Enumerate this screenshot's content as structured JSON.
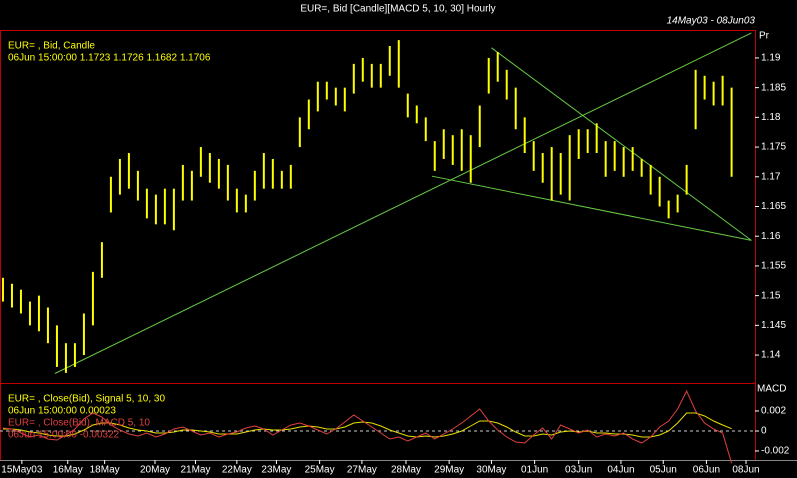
{
  "chart_data": [
    {
      "type": "candlestick",
      "title": "EUR=, Bid [Candle][MACD 5, 10, 30] Hourly",
      "subtitle": "14May03 - 08Jun03",
      "y_label": "Pr",
      "legend_lines": [
        "EUR= , Bid, Candle",
        "06Jun 15:00:00 1.1723 1.1726 1.1682 1.1706"
      ],
      "color": "#ffff00",
      "xlim": [
        -0.33,
        83.6
      ],
      "ylim": [
        1.1353,
        1.1947
      ],
      "yticks": [
        1.14,
        1.145,
        1.15,
        1.155,
        1.16,
        1.165,
        1.17,
        1.175,
        1.18,
        1.185,
        1.19
      ],
      "high": [
        1.153,
        1.152,
        1.151,
        1.149,
        1.15,
        1.148,
        1.145,
        1.142,
        1.142,
        1.147,
        1.154,
        1.159,
        1.17,
        1.173,
        1.174,
        1.171,
        1.168,
        1.167,
        1.168,
        1.168,
        1.172,
        1.171,
        1.175,
        1.174,
        1.173,
        1.172,
        1.168,
        1.167,
        1.171,
        1.174,
        1.173,
        1.171,
        1.172,
        1.18,
        1.183,
        1.186,
        1.186,
        1.185,
        1.185,
        1.189,
        1.19,
        1.189,
        1.189,
        1.192,
        1.193,
        1.184,
        1.182,
        1.18,
        1.176,
        1.178,
        1.177,
        1.178,
        1.177,
        1.182,
        1.19,
        1.191,
        1.188,
        1.185,
        1.18,
        1.176,
        1.174,
        1.175,
        1.174,
        1.177,
        1.178,
        1.178,
        1.179,
        1.176,
        1.176,
        1.175,
        1.175,
        1.173,
        1.172,
        1.17,
        1.166,
        1.167,
        1.172,
        1.188,
        1.187,
        1.186,
        1.187,
        1.185
      ],
      "low": [
        1.149,
        1.148,
        1.147,
        1.145,
        1.144,
        1.142,
        1.138,
        1.137,
        1.138,
        1.14,
        1.145,
        1.153,
        1.164,
        1.167,
        1.168,
        1.166,
        1.163,
        1.162,
        1.162,
        1.161,
        1.166,
        1.166,
        1.17,
        1.169,
        1.168,
        1.166,
        1.164,
        1.164,
        1.166,
        1.168,
        1.168,
        1.168,
        1.168,
        1.175,
        1.178,
        1.181,
        1.183,
        1.182,
        1.181,
        1.184,
        1.186,
        1.185,
        1.185,
        1.187,
        1.185,
        1.18,
        1.179,
        1.176,
        1.171,
        1.173,
        1.172,
        1.171,
        1.169,
        1.175,
        1.184,
        1.186,
        1.183,
        1.178,
        1.174,
        1.171,
        1.169,
        1.166,
        1.167,
        1.166,
        1.173,
        1.174,
        1.174,
        1.17,
        1.171,
        1.17,
        1.171,
        1.17,
        1.167,
        1.165,
        1.163,
        1.164,
        1.167,
        1.178,
        1.183,
        1.182,
        1.182,
        1.17
      ],
      "trendline_color": "#66cc44",
      "trendlines": [
        {
          "x": [
            5.78,
            83.2
          ],
          "y": [
            1.1369,
            1.1942
          ]
        },
        {
          "x": [
            54.3,
            83.2
          ],
          "y": [
            1.1917,
            1.1593
          ]
        },
        {
          "x": [
            47.7,
            83.2
          ],
          "y": [
            1.1701,
            1.1593
          ]
        }
      ]
    },
    {
      "type": "line",
      "y_label": "MACD",
      "xlim": [
        -0.33,
        83.6
      ],
      "ylim": [
        -0.0029,
        0.0048
      ],
      "yticks": [
        0.002,
        0,
        -0.002
      ],
      "zero_line": true,
      "xticks": [
        {
          "value": 2.1,
          "label": "15May03"
        },
        {
          "value": 7.2,
          "label": "16May"
        },
        {
          "value": 11.3,
          "label": "18May"
        },
        {
          "value": 16.9,
          "label": "20May"
        },
        {
          "value": 21.4,
          "label": "21May"
        },
        {
          "value": 26,
          "label": "22May"
        },
        {
          "value": 30.4,
          "label": "23May"
        },
        {
          "value": 35.2,
          "label": "25May"
        },
        {
          "value": 39.9,
          "label": "27May"
        },
        {
          "value": 44.8,
          "label": "28May"
        },
        {
          "value": 49.6,
          "label": "29May"
        },
        {
          "value": 54.3,
          "label": "30May"
        },
        {
          "value": 59.1,
          "label": "01Jun"
        },
        {
          "value": 64,
          "label": "03Jun"
        },
        {
          "value": 68.7,
          "label": "04Jun"
        },
        {
          "value": 73.4,
          "label": "05Jun"
        },
        {
          "value": 78.2,
          "label": "06Jun"
        },
        {
          "value": 82.6,
          "label": "08Jun"
        }
      ],
      "series": [
        {
          "name": "EUR= , Close(Bid), Signal 5, 10, 30",
          "last_label": "06Jun 15:00:00 0.00023",
          "color": "#e8e000",
          "values": [
            0.0002,
            0.0002,
            0.0001,
            -0.0001,
            -0.0002,
            -0.0004,
            -0.0005,
            -0.0005,
            -0.0003,
            0.0001,
            0.0006,
            0.0008,
            0.0008,
            0.0006,
            0.0003,
            0.0001,
            0,
            -0.0002,
            -0.0002,
            -0.0001,
            0.0001,
            0.0001,
            0,
            -0.0001,
            -0.0003,
            -0.0003,
            -0.0003,
            -0.0001,
            0.0001,
            0.0002,
            0.0001,
            0.0001,
            0.0002,
            0.0004,
            0.0005,
            0.0004,
            0.0002,
            0.0002,
            0.0004,
            0.0008,
            0.0009,
            0.0008,
            0.0005,
            0.0001,
            -0.0002,
            -0.0005,
            -0.0006,
            -0.0005,
            -0.0006,
            -0.0005,
            -0.0003,
            0,
            0.0005,
            0.001,
            0.001,
            0.0008,
            0.0004,
            -0.0001,
            -0.0005,
            -0.0005,
            -0.0003,
            -0.0004,
            -0.0001,
            0,
            -0.0001,
            0,
            -0.0002,
            -0.0002,
            -0.0003,
            -0.0003,
            -0.0004,
            -0.0006,
            -0.0006,
            -0.0004,
            0,
            0.0008,
            0.0018,
            0.0018,
            0.0015,
            0.001,
            0.0006,
            0.00023
          ]
        },
        {
          "name": "EUR= , Close(Bid), MACD 5, 10",
          "last_label": "06Jun 15:00:00 -0.00322",
          "color": "#e04040",
          "values": [
            0.0003,
            0.0002,
            -0.0002,
            -0.0006,
            -0.0004,
            -0.0008,
            -0.0009,
            -0.0004,
            0.0002,
            0.0012,
            0.0018,
            0.0014,
            0.0006,
            0.0001,
            -0.0003,
            -0.0005,
            -0.0002,
            -0.0006,
            -0.0003,
            0.0002,
            0.0004,
            0,
            -0.0004,
            -0.0002,
            -0.0006,
            -0.0003,
            -0.0001,
            0.0003,
            0.0005,
            0.0002,
            -0.0004,
            0.0001,
            0.0006,
            0.0008,
            0.0005,
            0.0001,
            -0.0003,
            0.0002,
            0.0009,
            0.0016,
            0.001,
            0.0004,
            -0.0002,
            -0.0008,
            -0.0006,
            -0.001,
            -0.0006,
            -0.0002,
            -0.0008,
            -0.0003,
            0.0002,
            0.0008,
            0.0015,
            0.0022,
            0.001,
            0.0001,
            -0.0006,
            -0.0011,
            -0.0012,
            -0.0004,
            0.0003,
            -0.0008,
            0.0006,
            0.0002,
            -0.0002,
            0.0001,
            -0.0006,
            -0.0003,
            -0.0005,
            -0.0002,
            -0.0008,
            -0.0012,
            -0.0006,
            0.0004,
            0.001,
            0.0022,
            0.004,
            0.002,
            0.0008,
            0.0002,
            -0.0002,
            -0.00322
          ]
        }
      ]
    }
  ]
}
